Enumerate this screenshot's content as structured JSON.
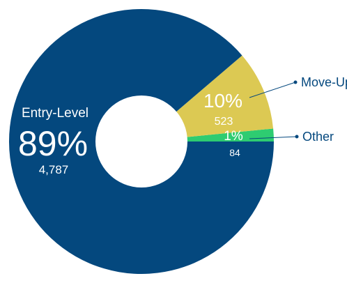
{
  "chart_data": {
    "type": "pie",
    "style": "donut",
    "slices": [
      {
        "name": "Entry-Level",
        "percent_label": "89%",
        "count_label": "4,787",
        "value": 4787,
        "color": "#04487e"
      },
      {
        "name": "Move-Up",
        "percent_label": "10%",
        "count_label": "523",
        "value": 523,
        "color": "#dcc953"
      },
      {
        "name": "Other",
        "percent_label": "1%",
        "count_label": "84",
        "value": 84,
        "color": "#2ecc71"
      }
    ],
    "start_angle_deg": 0,
    "direction": "counterclockwise"
  }
}
